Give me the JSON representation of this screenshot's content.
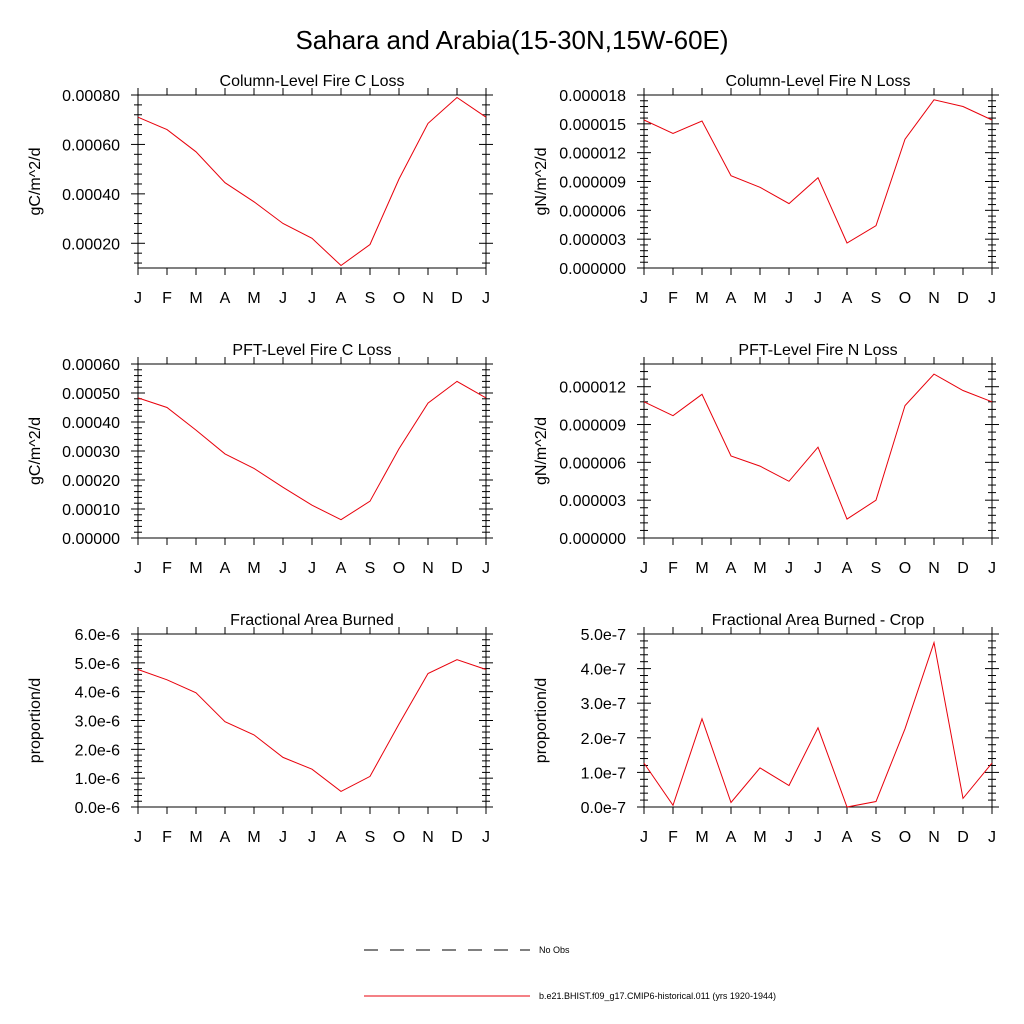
{
  "figure_title": "Sahara and Arabia(15-30N,15W-60E)",
  "months": [
    "J",
    "F",
    "M",
    "A",
    "M",
    "J",
    "J",
    "A",
    "S",
    "O",
    "N",
    "D",
    "J"
  ],
  "colors": {
    "series": "#e8000b",
    "axis": "#000000"
  },
  "legend": [
    {
      "label": "No Obs",
      "style": "dashed",
      "color": "#000000"
    },
    {
      "label": "b.e21.BHIST.f09_g17.CMIP6-historical.011 (yrs 1920-1944)",
      "style": "solid",
      "color": "#e8000b"
    }
  ],
  "chart_data": [
    {
      "type": "line",
      "title": "Column-Level Fire C Loss",
      "ylabel": "gC/m^2/d",
      "ylim": [
        0.0001,
        0.0008
      ],
      "yticks": [
        0.0002,
        0.0004,
        0.0006,
        0.0008
      ],
      "ytick_labels": [
        "0.00020",
        "0.00040",
        "0.00060",
        "0.00080"
      ],
      "series": [
        {
          "values": [
            0.00071,
            0.00066,
            0.00057,
            0.000445,
            0.000368,
            0.00028,
            0.00022,
            0.00011,
            0.000195,
            0.00046,
            0.000685,
            0.00079,
            0.00071
          ]
        }
      ]
    },
    {
      "type": "line",
      "title": "Column-Level Fire N Loss",
      "ylabel": "gN/m^2/d",
      "ylim": [
        0,
        1.8e-05
      ],
      "yticks": [
        0,
        3e-06,
        6e-06,
        9e-06,
        1.2e-05,
        1.5e-05,
        1.8e-05
      ],
      "ytick_labels": [
        "0.000000",
        "0.000003",
        "0.000006",
        "0.000009",
        "0.000012",
        "0.000015",
        "0.000018"
      ],
      "series": [
        {
          "values": [
            1.54e-05,
            1.4e-05,
            1.53e-05,
            9.6e-06,
            8.4e-06,
            6.7e-06,
            9.4e-06,
            2.6e-06,
            4.4e-06,
            1.34e-05,
            1.75e-05,
            1.68e-05,
            1.54e-05
          ]
        }
      ]
    },
    {
      "type": "line",
      "title": "PFT-Level Fire C Loss",
      "ylabel": "gC/m^2/d",
      "ylim": [
        0,
        0.0006
      ],
      "yticks": [
        0,
        0.0001,
        0.0002,
        0.0003,
        0.0004,
        0.0005,
        0.0006
      ],
      "ytick_labels": [
        "0.00000",
        "0.00010",
        "0.00020",
        "0.00030",
        "0.00040",
        "0.00050",
        "0.00060"
      ],
      "series": [
        {
          "values": [
            0.000483,
            0.00045,
            0.000372,
            0.00029,
            0.00024,
            0.000175,
            0.000113,
            6.3e-05,
            0.000127,
            0.000308,
            0.000465,
            0.00054,
            0.000483
          ]
        }
      ]
    },
    {
      "type": "line",
      "title": "PFT-Level Fire N Loss",
      "ylabel": "gN/m^2/d",
      "ylim": [
        0,
        1.38e-05
      ],
      "yticks": [
        0,
        3e-06,
        6e-06,
        9e-06,
        1.2e-05
      ],
      "ytick_labels": [
        "0.000000",
        "0.000003",
        "0.000006",
        "0.000009",
        "0.000012"
      ],
      "series": [
        {
          "values": [
            1.08e-05,
            9.7e-06,
            1.14e-05,
            6.5e-06,
            5.7e-06,
            4.5e-06,
            7.2e-06,
            1.5e-06,
            3e-06,
            1.05e-05,
            1.3e-05,
            1.17e-05,
            1.08e-05
          ]
        }
      ]
    },
    {
      "type": "line",
      "title": "Fractional Area Burned",
      "ylabel": "proportion/d",
      "ylim": [
        0,
        6e-06
      ],
      "yticks": [
        0,
        1e-06,
        2e-06,
        3e-06,
        4e-06,
        5e-06,
        6e-06
      ],
      "ytick_labels": [
        "0.0e-6",
        "1.0e-6",
        "2.0e-6",
        "3.0e-6",
        "4.0e-6",
        "5.0e-6",
        "6.0e-6"
      ],
      "series": [
        {
          "values": [
            4.77e-06,
            4.41e-06,
            3.96e-06,
            2.96e-06,
            2.5e-06,
            1.72e-06,
            1.31e-06,
            5.4e-07,
            1.06e-06,
            2.88e-06,
            4.63e-06,
            5.11e-06,
            4.77e-06
          ]
        }
      ]
    },
    {
      "type": "line",
      "title": "Fractional Area Burned - Crop",
      "ylabel": "proportion/d",
      "ylim": [
        0,
        5e-07
      ],
      "yticks": [
        0,
        1e-07,
        2e-07,
        3e-07,
        4e-07,
        5e-07
      ],
      "ytick_labels": [
        "0.0e-7",
        "1.0e-7",
        "2.0e-7",
        "3.0e-7",
        "4.0e-7",
        "5.0e-7"
      ],
      "series": [
        {
          "values": [
            1.27e-07,
            5e-09,
            2.55e-07,
            1.3e-08,
            1.13e-07,
            6.2e-08,
            2.29e-07,
            0.0,
            1.6e-08,
            2.26e-07,
            4.75e-07,
            2.5e-08,
            1.27e-07
          ]
        }
      ]
    }
  ]
}
